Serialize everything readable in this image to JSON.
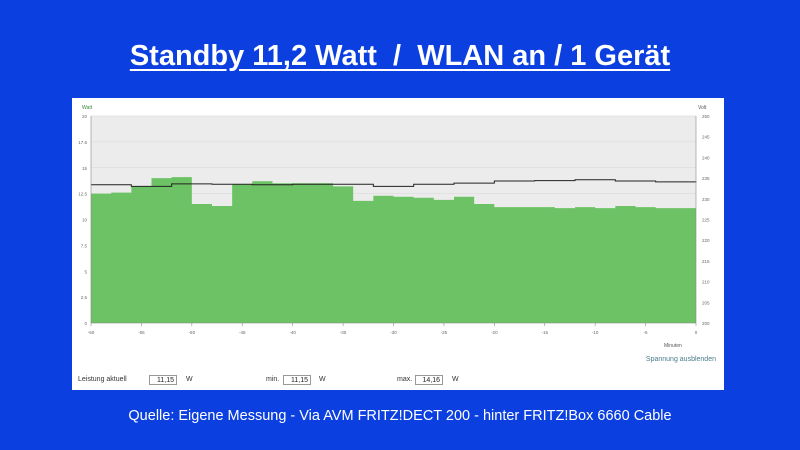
{
  "title": "Standby 11,2 Watt  /  WLAN an / 1 Gerät",
  "caption": "Quelle:  Eigene Messung - Via AVM FRITZ!DECT 200 - hinter FRITZ!Box 6660 Cable",
  "colors": {
    "background": "#0b3fe0",
    "power_fill": "#6cc264",
    "voltage_line": "#222222",
    "plot_bg": "#ececec"
  },
  "chart_data": {
    "type": "area",
    "left_axis_label": "Watt",
    "right_axis_label": "Volt",
    "x_unit_label": "Minuten",
    "xlim": [
      -60,
      0
    ],
    "ylim_left": [
      0,
      20
    ],
    "ylim_right": [
      200,
      250
    ],
    "x_ticks": [
      "-60",
      "-55",
      "-50",
      "-45",
      "-40",
      "-35",
      "-30",
      "-25",
      "-20",
      "-15",
      "-10",
      "-5",
      "0"
    ],
    "y_left_ticks": [
      "20",
      "17.5",
      "15",
      "12.5",
      "10",
      "7.5",
      "5",
      "2.5",
      "0"
    ],
    "y_right_ticks": [
      "250",
      "245",
      "240",
      "235",
      "230",
      "225",
      "220",
      "215",
      "210",
      "205",
      "200"
    ],
    "series": [
      {
        "name": "Leistung",
        "axis": "left",
        "x": [
          -60,
          -58,
          -56,
          -54,
          -52,
          -50,
          -48,
          -46,
          -44,
          -42,
          -40,
          -38,
          -36,
          -34,
          -32,
          -30,
          -28,
          -26,
          -24,
          -22,
          -20,
          -18,
          -16,
          -14,
          -12,
          -10,
          -8,
          -6,
          -4,
          -2,
          0
        ],
        "values": [
          12.5,
          12.6,
          13.2,
          14.0,
          14.1,
          11.5,
          11.3,
          13.4,
          13.7,
          13.5,
          13.5,
          13.5,
          13.2,
          11.8,
          12.3,
          12.2,
          12.1,
          11.9,
          12.2,
          11.5,
          11.2,
          11.2,
          11.2,
          11.1,
          11.2,
          11.1,
          11.3,
          11.2,
          11.1,
          11.1,
          11.1
        ]
      },
      {
        "name": "Spannung",
        "axis": "right",
        "x": [
          -60,
          -56,
          -52,
          -48,
          -44,
          -40,
          -36,
          -32,
          -28,
          -24,
          -20,
          -16,
          -12,
          -8,
          -4,
          0
        ],
        "values": [
          233.4,
          233.0,
          233.6,
          233.5,
          233.4,
          233.5,
          233.5,
          233.0,
          233.5,
          233.8,
          234.3,
          234.4,
          234.6,
          234.3,
          234.1,
          234.2
        ]
      }
    ]
  },
  "toggle_link": "Spannung ausblenden",
  "readouts": {
    "current": {
      "label": "Leistung aktuell",
      "value": "11,15",
      "unit": "W"
    },
    "min": {
      "label": "min.",
      "value": "11,15",
      "unit": "W"
    },
    "max": {
      "label": "max.",
      "value": "14,16",
      "unit": "W"
    }
  }
}
